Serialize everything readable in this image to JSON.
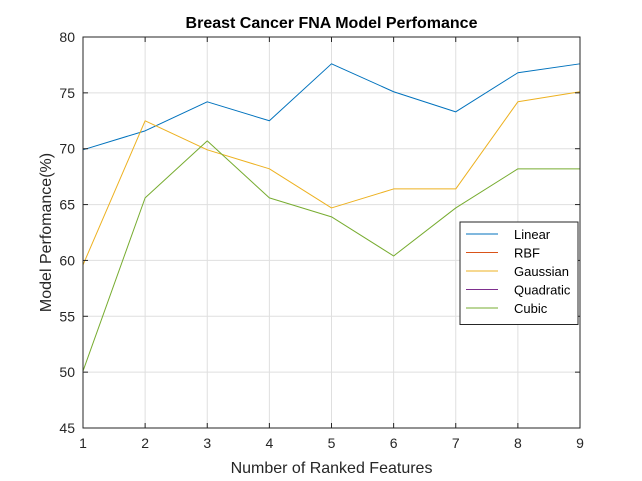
{
  "chart_data": {
    "type": "line",
    "title": "Breast Cancer FNA Model Perfomance",
    "xlabel": "Number of Ranked Features",
    "ylabel": "Model Perfomance(%)",
    "x": [
      1,
      2,
      3,
      4,
      5,
      6,
      7,
      8,
      9
    ],
    "xlim": [
      1,
      9
    ],
    "ylim": [
      45,
      80
    ],
    "xticks": [
      "1",
      "2",
      "3",
      "4",
      "5",
      "6",
      "7",
      "8",
      "9"
    ],
    "yticks": [
      "45",
      "50",
      "55",
      "60",
      "65",
      "70",
      "75",
      "80"
    ],
    "grid": true,
    "legend_position": "right",
    "series": [
      {
        "name": "Linear",
        "color": "#0072BD",
        "values": [
          69.9,
          71.6,
          74.2,
          72.5,
          77.6,
          75.1,
          73.3,
          76.8,
          77.6
        ]
      },
      {
        "name": "RBF",
        "color": "#D95319",
        "values": [
          null,
          null,
          null,
          null,
          null,
          null,
          null,
          null,
          null
        ]
      },
      {
        "name": "Gaussian",
        "color": "#EDB120",
        "values": [
          59.6,
          72.5,
          69.9,
          68.2,
          64.7,
          66.4,
          66.4,
          74.2,
          75.1
        ]
      },
      {
        "name": "Quadratic",
        "color": "#7E2F8E",
        "values": [
          null,
          null,
          null,
          null,
          null,
          null,
          null,
          null,
          null
        ]
      },
      {
        "name": "Cubic",
        "color": "#77AC30",
        "values": [
          50.1,
          65.6,
          70.7,
          65.6,
          63.9,
          60.4,
          64.7,
          68.2,
          68.2
        ]
      }
    ]
  }
}
